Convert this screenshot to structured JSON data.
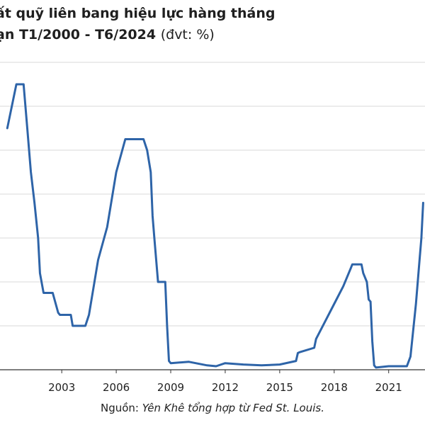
{
  "chart_data": {
    "type": "line",
    "title_line1": "ất quỹ liên bang hiệu lực hàng tháng",
    "title_line2": "ạn T1/2000 - T6/2024",
    "unit": "(đvt: %)",
    "xlabel": "",
    "ylabel": "",
    "x_ticks": [
      "2003",
      "2006",
      "2009",
      "2012",
      "2015",
      "2018",
      "2021"
    ],
    "ylim": [
      0,
      7
    ],
    "grid": true,
    "color": "#2e64a8",
    "series": [
      {
        "x": [
          2000.0,
          2000.5,
          2000.9,
          2001.0,
          2001.1,
          2001.3,
          2001.5,
          2001.7,
          2001.8,
          2002.0,
          2002.5,
          2002.8,
          2002.9,
          2003.5,
          2003.6,
          2004.0,
          2004.3,
          2004.5,
          2005.0,
          2005.5,
          2006.0,
          2006.5,
          2007.0,
          2007.5,
          2007.7,
          2007.9,
          2008.0,
          2008.1,
          2008.3,
          2008.7,
          2008.8,
          2008.9,
          2009.0,
          2010.0,
          2011.0,
          2011.5,
          2012.0,
          2013.0,
          2014.0,
          2015.0,
          2015.9,
          2016.0,
          2016.1,
          2016.9,
          2017.0,
          2017.5,
          2018.0,
          2018.5,
          2018.9,
          2019.0,
          2019.5,
          2019.6,
          2019.8,
          2019.9,
          2020.0,
          2020.1,
          2020.2,
          2020.3,
          2021.0,
          2022.0,
          2022.2,
          2022.5,
          2022.7,
          2022.8,
          2022.9
        ],
        "y": [
          5.5,
          6.5,
          6.5,
          6.0,
          5.5,
          4.5,
          3.8,
          3.0,
          2.2,
          1.75,
          1.75,
          1.3,
          1.25,
          1.25,
          1.0,
          1.0,
          1.0,
          1.25,
          2.5,
          3.25,
          4.5,
          5.25,
          5.25,
          5.25,
          5.0,
          4.5,
          3.5,
          3.0,
          2.0,
          2.0,
          1.0,
          0.2,
          0.15,
          0.18,
          0.1,
          0.08,
          0.15,
          0.12,
          0.1,
          0.12,
          0.2,
          0.38,
          0.4,
          0.5,
          0.7,
          1.1,
          1.5,
          1.9,
          2.3,
          2.4,
          2.4,
          2.2,
          2.0,
          1.6,
          1.55,
          0.65,
          0.1,
          0.05,
          0.08,
          0.08,
          0.3,
          1.5,
          2.5,
          3.0,
          3.8
        ]
      }
    ]
  },
  "source": {
    "prefix": "Nguồn:",
    "text": "Yên Khê tổng hợp từ Fed St. Louis."
  }
}
